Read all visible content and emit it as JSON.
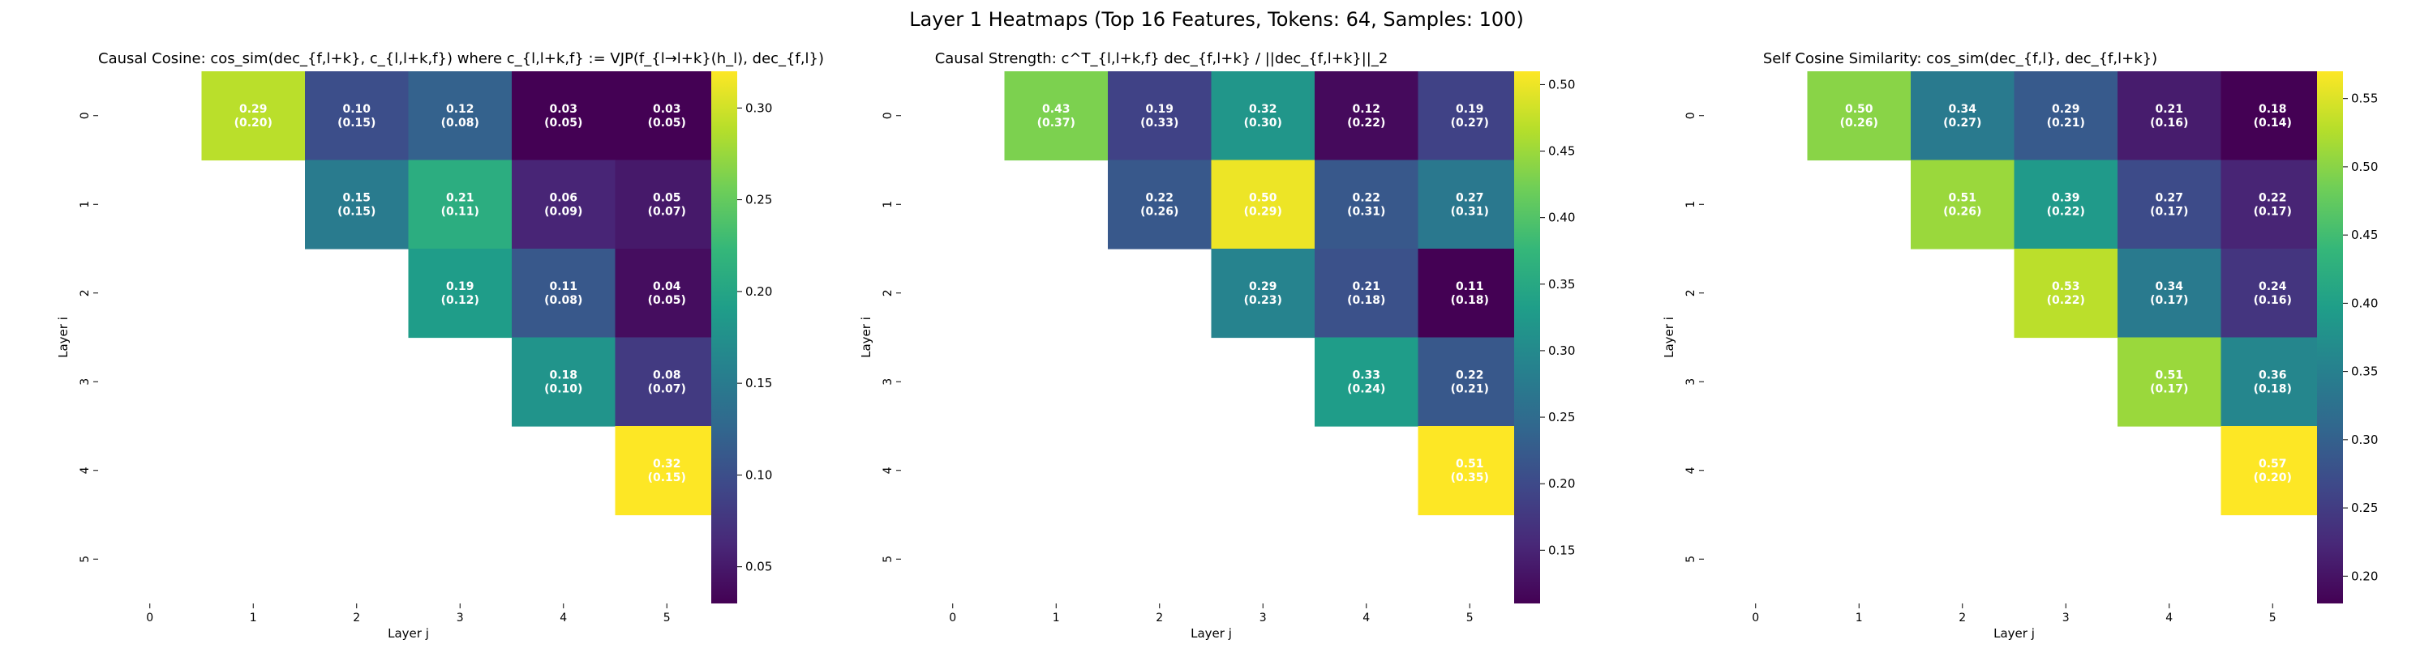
{
  "figure": {
    "suptitle": "Layer 1 Heatmaps (Top 16 Features, Tokens: 64, Samples: 100)"
  },
  "chart_data": [
    {
      "type": "heatmap",
      "title": "Causal Cosine: cos_sim(dec_{f,l+k}, c_{l,l+k,f}) where c_{l,l+k,f} := VJP(f_{l→l+k}(h_l), dec_{f,l})",
      "xlabel": "Layer j",
      "ylabel": "Layer i",
      "x_ticks": [
        "0",
        "1",
        "2",
        "3",
        "4",
        "5"
      ],
      "y_ticks": [
        "0",
        "1",
        "2",
        "3",
        "4",
        "5"
      ],
      "colormap": "viridis",
      "vmin": 0.03,
      "vmax": 0.32,
      "colorbar_ticks": [
        0.05,
        0.1,
        0.15,
        0.2,
        0.25,
        0.3
      ],
      "values": [
        [
          null,
          0.29,
          0.1,
          0.12,
          0.03,
          0.03
        ],
        [
          null,
          null,
          0.15,
          0.21,
          0.06,
          0.05
        ],
        [
          null,
          null,
          null,
          0.19,
          0.11,
          0.04
        ],
        [
          null,
          null,
          null,
          null,
          0.18,
          0.08
        ],
        [
          null,
          null,
          null,
          null,
          null,
          0.32
        ],
        [
          null,
          null,
          null,
          null,
          null,
          null
        ]
      ],
      "std": [
        [
          null,
          0.2,
          0.15,
          0.08,
          0.05,
          0.05
        ],
        [
          null,
          null,
          0.15,
          0.11,
          0.09,
          0.07
        ],
        [
          null,
          null,
          null,
          0.12,
          0.08,
          0.05
        ],
        [
          null,
          null,
          null,
          null,
          0.1,
          0.07
        ],
        [
          null,
          null,
          null,
          null,
          null,
          0.15
        ],
        [
          null,
          null,
          null,
          null,
          null,
          null
        ]
      ]
    },
    {
      "type": "heatmap",
      "title": "Causal Strength: c^T_{l,l+k,f} dec_{f,l+k} / ||dec_{f,l+k}||_2",
      "xlabel": "Layer j",
      "ylabel": "Layer i",
      "x_ticks": [
        "0",
        "1",
        "2",
        "3",
        "4",
        "5"
      ],
      "y_ticks": [
        "0",
        "1",
        "2",
        "3",
        "4",
        "5"
      ],
      "colormap": "viridis",
      "vmin": 0.11,
      "vmax": 0.51,
      "colorbar_ticks": [
        0.15,
        0.2,
        0.25,
        0.3,
        0.35,
        0.4,
        0.45,
        0.5
      ],
      "values": [
        [
          null,
          0.43,
          0.19,
          0.32,
          0.12,
          0.19
        ],
        [
          null,
          null,
          0.22,
          0.5,
          0.22,
          0.27
        ],
        [
          null,
          null,
          null,
          0.29,
          0.21,
          0.11
        ],
        [
          null,
          null,
          null,
          null,
          0.33,
          0.22
        ],
        [
          null,
          null,
          null,
          null,
          null,
          0.51
        ],
        [
          null,
          null,
          null,
          null,
          null,
          null
        ]
      ],
      "std": [
        [
          null,
          0.37,
          0.33,
          0.3,
          0.22,
          0.27
        ],
        [
          null,
          null,
          0.26,
          0.29,
          0.31,
          0.31
        ],
        [
          null,
          null,
          null,
          0.23,
          0.18,
          0.18
        ],
        [
          null,
          null,
          null,
          null,
          0.24,
          0.21
        ],
        [
          null,
          null,
          null,
          null,
          null,
          0.35
        ],
        [
          null,
          null,
          null,
          null,
          null,
          null
        ]
      ]
    },
    {
      "type": "heatmap",
      "title": "Self Cosine Similarity: cos_sim(dec_{f,l}, dec_{f,l+k})",
      "xlabel": "Layer j",
      "ylabel": "Layer i",
      "x_ticks": [
        "0",
        "1",
        "2",
        "3",
        "4",
        "5"
      ],
      "y_ticks": [
        "0",
        "1",
        "2",
        "3",
        "4",
        "5"
      ],
      "colormap": "viridis",
      "vmin": 0.18,
      "vmax": 0.57,
      "colorbar_ticks": [
        0.2,
        0.25,
        0.3,
        0.35,
        0.4,
        0.45,
        0.5,
        0.55
      ],
      "values": [
        [
          null,
          0.5,
          0.34,
          0.29,
          0.21,
          0.18
        ],
        [
          null,
          null,
          0.51,
          0.39,
          0.27,
          0.22
        ],
        [
          null,
          null,
          null,
          0.53,
          0.34,
          0.24
        ],
        [
          null,
          null,
          null,
          null,
          0.51,
          0.36
        ],
        [
          null,
          null,
          null,
          null,
          null,
          0.57
        ],
        [
          null,
          null,
          null,
          null,
          null,
          null
        ]
      ],
      "std": [
        [
          null,
          0.26,
          0.27,
          0.21,
          0.16,
          0.14
        ],
        [
          null,
          null,
          0.26,
          0.22,
          0.17,
          0.17
        ],
        [
          null,
          null,
          null,
          0.22,
          0.17,
          0.16
        ],
        [
          null,
          null,
          null,
          null,
          0.17,
          0.18
        ],
        [
          null,
          null,
          null,
          null,
          null,
          0.2
        ],
        [
          null,
          null,
          null,
          null,
          null,
          null
        ]
      ]
    }
  ]
}
